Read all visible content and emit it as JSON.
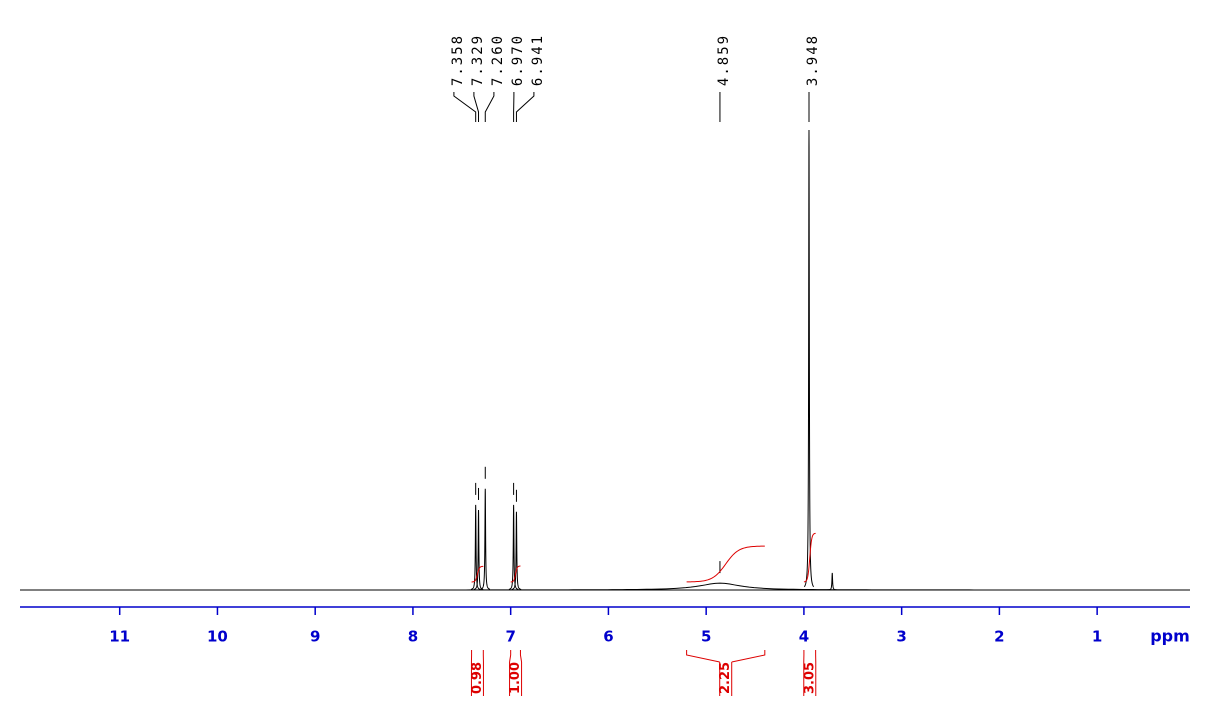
{
  "chart_data": {
    "type": "nmr",
    "x": [
      7.358,
      7.329,
      7.26,
      6.97,
      6.941,
      4.859,
      3.948,
      3.71
    ],
    "x_labels": [
      "7.358",
      "7.329",
      "7.260",
      "6.970",
      "6.941",
      "4.859",
      "3.948",
      null
    ],
    "values": [
      18.5,
      17.4,
      22,
      18.5,
      17,
      1.5,
      100,
      3.7
    ],
    "widths": [
      0.004,
      0.004,
      0.004,
      0.004,
      0.004,
      0.25,
      0.004,
      0.004
    ],
    "color": "#000000",
    "xlim": [
      12.02,
      0.05
    ],
    "ylim": [
      0,
      100
    ],
    "xticks": [
      11,
      10,
      9,
      8,
      7,
      6,
      5,
      4,
      3,
      2,
      1
    ],
    "xlabel": "ppm",
    "axis_color": "#0000cc",
    "integrals": {
      "color": "#dd0000",
      "ranges": [
        [
          7.4,
          7.28
        ],
        [
          7.0,
          6.9
        ],
        [
          5.2,
          4.4
        ],
        [
          4.0,
          3.88
        ]
      ],
      "values": [
        0.98,
        1,
        2.25,
        3.05
      ],
      "value_labels": [
        "0.98",
        "1.00",
        "2.25",
        "3.05"
      ]
    }
  }
}
